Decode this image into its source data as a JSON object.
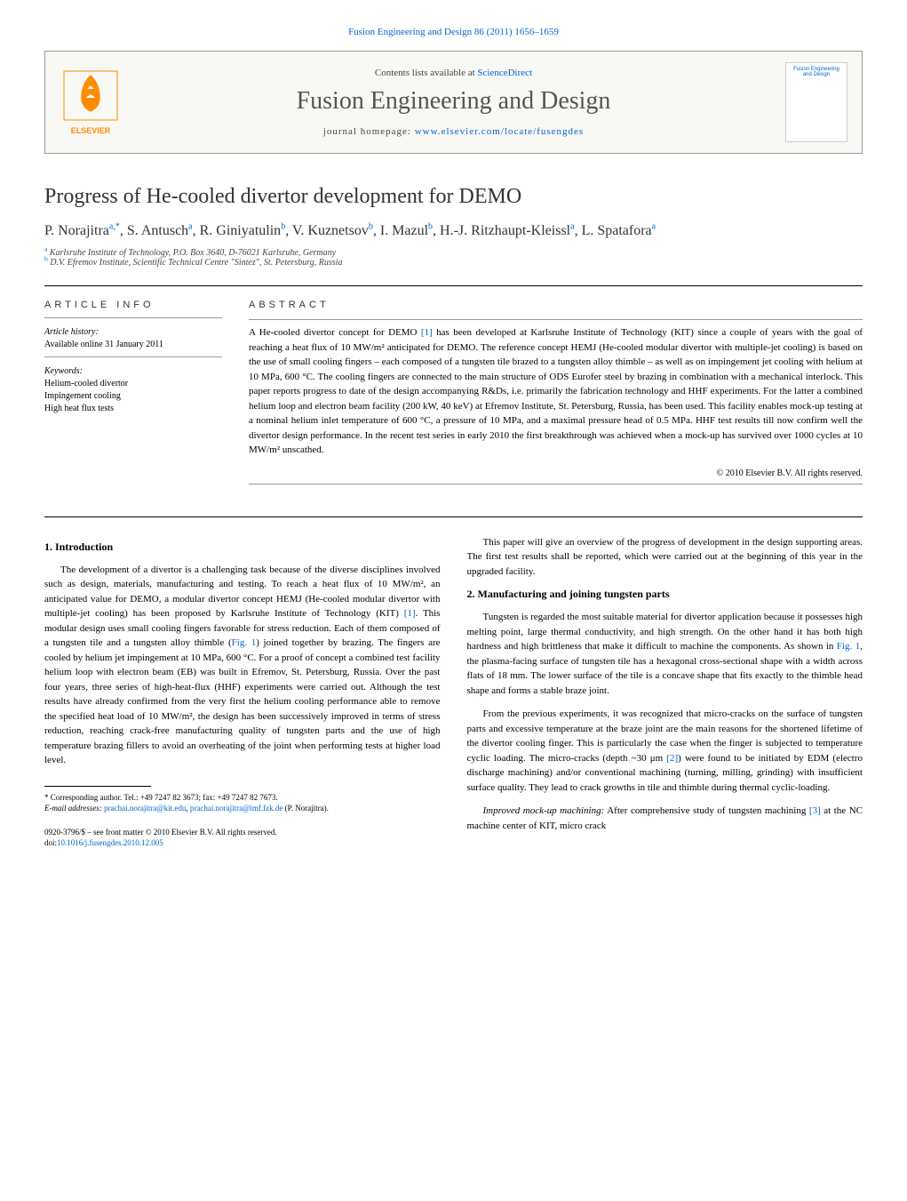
{
  "journal_header": "Fusion Engineering and Design 86 (2011) 1656–1659",
  "header": {
    "contents_prefix": "Contents lists available at ",
    "contents_link": "ScienceDirect",
    "journal_title": "Fusion Engineering and Design",
    "homepage_prefix": "journal homepage: ",
    "homepage_link": "www.elsevier.com/locate/fusengdes",
    "publisher": "ELSEVIER",
    "cover_title": "Fusion Engineering and Design"
  },
  "article": {
    "title": "Progress of He-cooled divertor development for DEMO",
    "authors_html": "P. Norajitra<sup>a,*</sup>, S. Antusch<sup>a</sup>, R. Giniyatulin<sup>b</sup>, V. Kuznetsov<sup>b</sup>, I. Mazul<sup>b</sup>, H.-J. Ritzhaupt-Kleissl<sup>a</sup>, L. Spatafora<sup>a</sup>",
    "affiliations": [
      {
        "sup": "a",
        "text": "Karlsruhe Institute of Technology, P.O. Box 3640, D-76021 Karlsruhe, Germany"
      },
      {
        "sup": "b",
        "text": "D.V. Efremov Institute, Scientific Technical Centre \"Sintez\", St. Petersburg, Russia"
      }
    ]
  },
  "info": {
    "heading": "ARTICLE INFO",
    "history_label": "Article history:",
    "history_text": "Available online 31 January 2011",
    "keywords_label": "Keywords:",
    "keywords": [
      "Helium-cooled divertor",
      "Impingement cooling",
      "High heat flux tests"
    ]
  },
  "abstract": {
    "heading": "ABSTRACT",
    "text": "A He-cooled divertor concept for DEMO [1] has been developed at Karlsruhe Institute of Technology (KIT) since a couple of years with the goal of reaching a heat flux of 10 MW/m² anticipated for DEMO. The reference concept HEMJ (He-cooled modular divertor with multiple-jet cooling) is based on the use of small cooling fingers – each composed of a tungsten tile brazed to a tungsten alloy thimble – as well as on impingement jet cooling with helium at 10 MPa, 600 °C. The cooling fingers are connected to the main structure of ODS Eurofer steel by brazing in combination with a mechanical interlock. This paper reports progress to date of the design accompanying R&Ds, i.e. primarily the fabrication technology and HHF experiments. For the latter a combined helium loop and electron beam facility (200 kW, 40 keV) at Efremov Institute, St. Petersburg, Russia, has been used. This facility enables mock-up testing at a nominal helium inlet temperature of 600 °C, a pressure of 10 MPa, and a maximal pressure head of 0.5 MPa. HHF test results till now confirm well the divertor design performance. In the recent test series in early 2010 the first breakthrough was achieved when a mock-up has survived over 1000 cycles at 10 MW/m² unscathed.",
    "copyright": "© 2010 Elsevier B.V. All rights reserved."
  },
  "sections": {
    "intro_heading": "1. Introduction",
    "intro_p1": "The development of a divertor is a challenging task because of the diverse disciplines involved such as design, materials, manufacturing and testing. To reach a heat flux of 10 MW/m², an anticipated value for DEMO, a modular divertor concept HEMJ (He-cooled modular divertor with multiple-jet cooling) has been proposed by Karlsruhe Institute of Technology (KIT) [1]. This modular design uses small cooling fingers favorable for stress reduction. Each of them composed of a tungsten tile and a tungsten alloy thimble (Fig. 1) joined together by brazing. The fingers are cooled by helium jet impingement at 10 MPa, 600 °C. For a proof of concept a combined test facility helium loop with electron beam (EB) was built in Efremov, St. Petersburg, Russia. Over the past four years, three series of high-heat-flux (HHF) experiments were carried out. Although the test results have already confirmed from the very first the helium cooling performance able to remove the specified heat load of 10 MW/m², the design has been successively improved in terms of stress reduction, reaching crack-free manufacturing quality of tungsten parts and the use of high temperature brazing fillers to avoid an overheating of the joint when performing tests at higher load level.",
    "intro_p2": "This paper will give an overview of the progress of development in the design supporting areas. The first test results shall be reported, which were carried out at the beginning of this year in the upgraded facility.",
    "mfg_heading": "2. Manufacturing and joining tungsten parts",
    "mfg_p1": "Tungsten is regarded the most suitable material for divertor application because it possesses high melting point, large thermal conductivity, and high strength. On the other hand it has both high hardness and high brittleness that make it difficult to machine the components. As shown in Fig. 1, the plasma-facing surface of tungsten tile has a hexagonal cross-sectional shape with a width across flats of 18 mm. The lower surface of the tile is a concave shape that fits exactly to the thimble head shape and forms a stable braze joint.",
    "mfg_p2": "From the previous experiments, it was recognized that micro-cracks on the surface of tungsten parts and excessive temperature at the braze joint are the main reasons for the shortened lifetime of the divertor cooling finger. This is particularly the case when the finger is subjected to temperature cyclic loading. The micro-cracks (depth ~30 μm [2]) were found to be initiated by EDM (electro discharge machining) and/or conventional machining (turning, milling, grinding) with insufficient surface quality. They lead to crack growths in tile and thimble during thermal cyclic-loading.",
    "mfg_p3_prefix": "Improved mock-up machining:",
    "mfg_p3": " After comprehensive study of tungsten machining [3] at the NC machine center of KIT, micro crack"
  },
  "footnote": {
    "corr_label": "* Corresponding author. Tel.: +49 7247 82 3673; fax: +49 7247 82 7673.",
    "email_label": "E-mail addresses:",
    "email1": "prachai.norajitra@kit.edu",
    "email_sep": ", ",
    "email2": "prachai.norajitra@imf.fzk.de",
    "email_after": "(P. Norajitra)."
  },
  "bottom": {
    "issn_line": "0920-3796/$ – see front matter © 2010 Elsevier B.V. All rights reserved.",
    "doi_prefix": "doi:",
    "doi": "10.1016/j.fusengdes.2010.12.005"
  },
  "colors": {
    "link": "#0066cc",
    "elsevier": "#ff8c00"
  }
}
